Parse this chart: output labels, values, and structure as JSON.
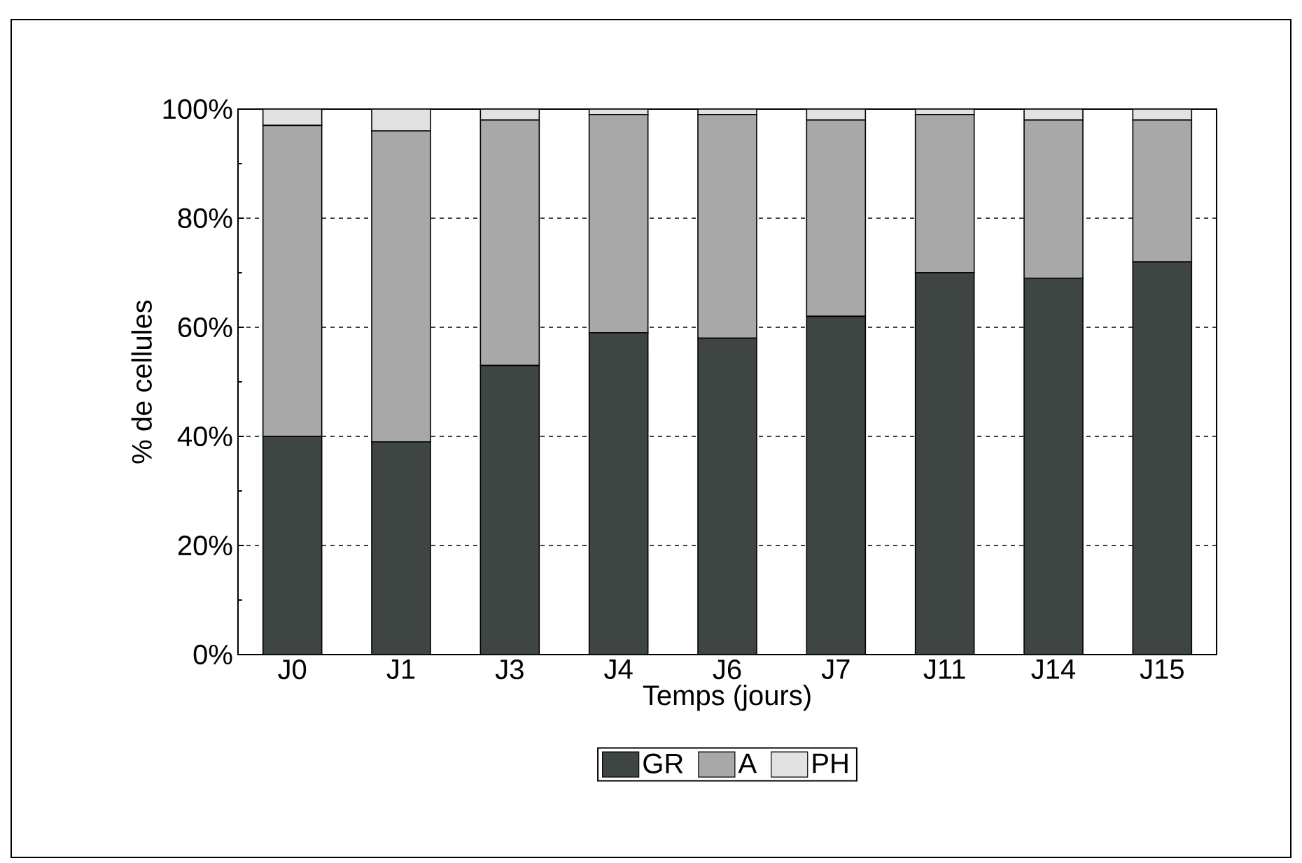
{
  "chart_data": {
    "type": "bar",
    "stacked": true,
    "xlabel": "Temps (jours)",
    "ylabel": "% de cellules",
    "categories": [
      "J0",
      "J1",
      "J3",
      "J4",
      "J6",
      "J7",
      "J11",
      "J14",
      "J15"
    ],
    "series": [
      {
        "name": "GR",
        "color": "#3f4542",
        "values": [
          40,
          39,
          53,
          59,
          58,
          62,
          70,
          69,
          72
        ]
      },
      {
        "name": "A",
        "color": "#a8a8a8",
        "values": [
          57,
          57,
          45,
          40,
          41,
          36,
          29,
          29,
          26
        ]
      },
      {
        "name": "PH",
        "color": "#e2e2e2",
        "values": [
          3,
          4,
          2,
          1,
          1,
          2,
          1,
          2,
          2
        ]
      }
    ],
    "ylim": [
      0,
      100
    ],
    "yticks": [
      {
        "value": 0,
        "label": "0%"
      },
      {
        "value": 20,
        "label": "20%"
      },
      {
        "value": 40,
        "label": "40%"
      },
      {
        "value": 60,
        "label": "60%"
      },
      {
        "value": 80,
        "label": "80%"
      },
      {
        "value": 100,
        "label": "100%"
      }
    ],
    "grid": "y",
    "legend": "bottom"
  }
}
